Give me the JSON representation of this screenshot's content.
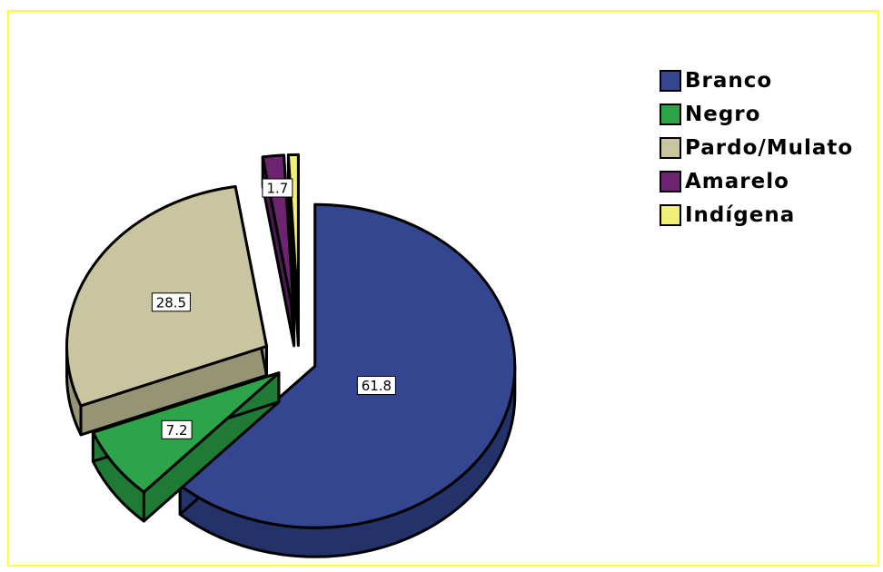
{
  "chart_data": {
    "type": "pie",
    "style": "3d-exploded",
    "values": [
      61.8,
      7.2,
      28.5,
      1.7,
      0.8
    ],
    "slice_labels": [
      "61.8",
      "7.2",
      "28.5",
      "1.7",
      ""
    ],
    "legend": [
      "Branco",
      "Negro",
      "Pardo/Mulato",
      "Amarelo",
      "Indígena"
    ],
    "legend_position": "top-right",
    "colors": [
      "#33468f",
      "#2da44a",
      "#c9c5a1",
      "#6d2370",
      "#f2ee7a"
    ],
    "side_colors": [
      "#24326a",
      "#1f7a36",
      "#979476",
      "#4e1852",
      "#c7c35a"
    ],
    "frame_color": "#ffff33"
  }
}
